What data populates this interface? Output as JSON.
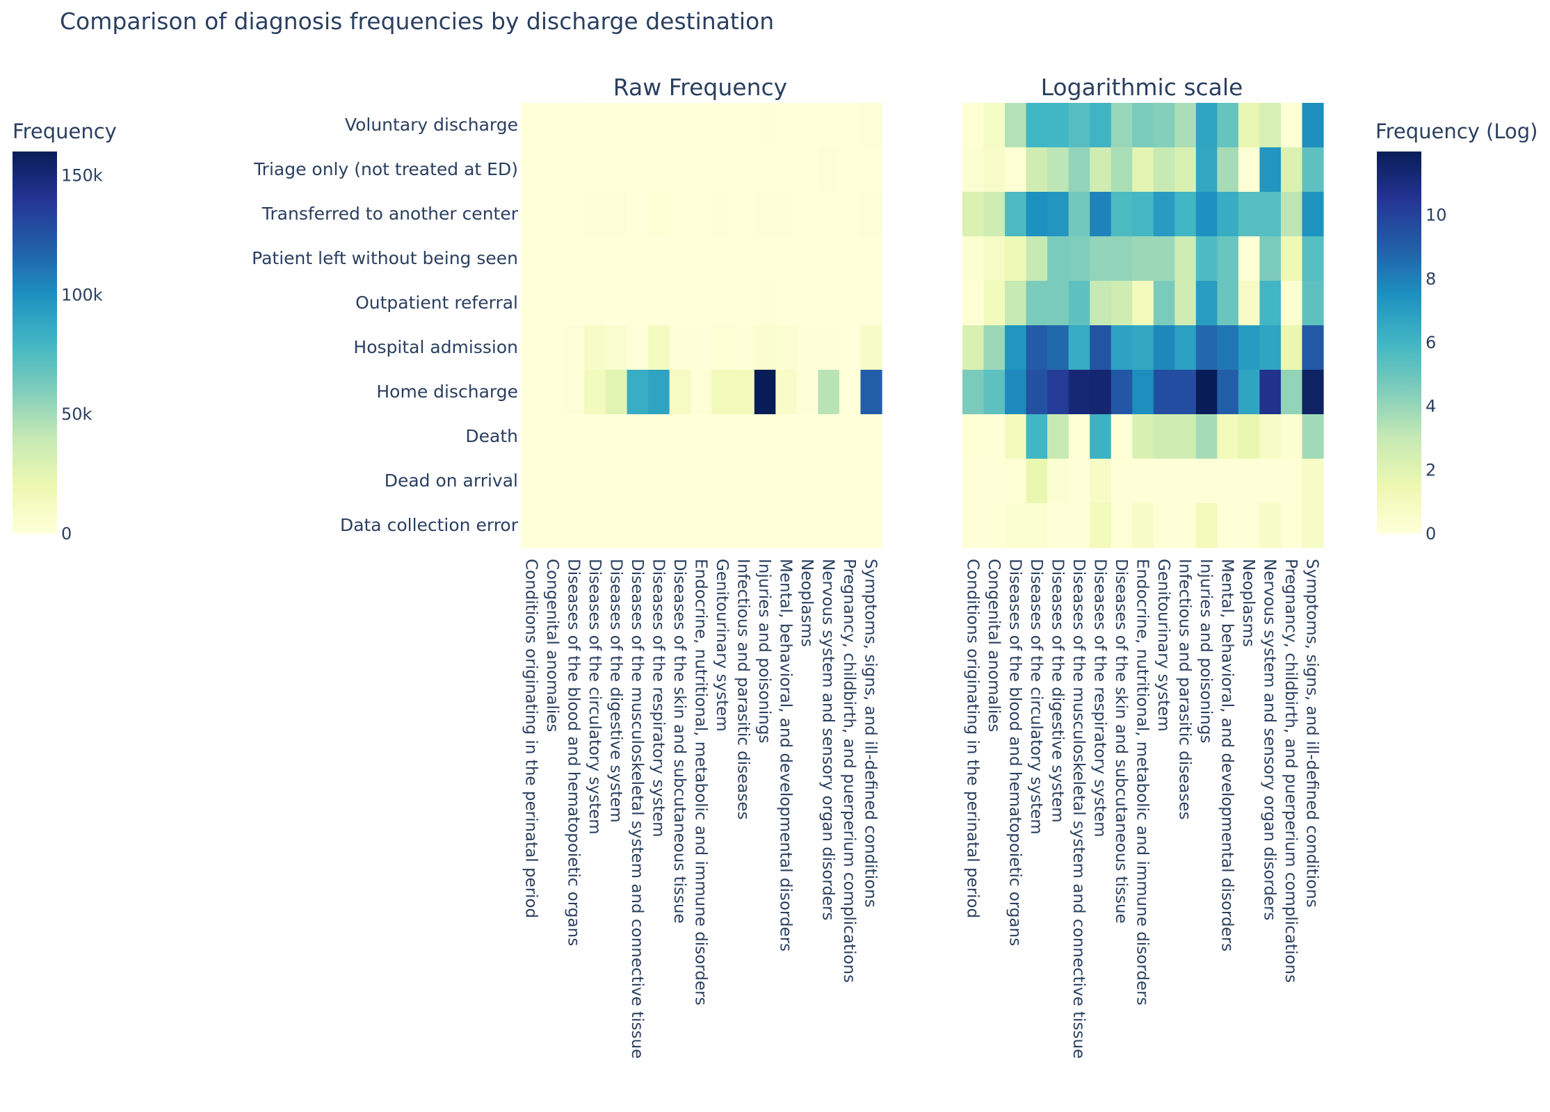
{
  "chart_data": {
    "type": "heatmap",
    "title": "Comparison of diagnosis frequencies by discharge destination",
    "colorscale": "YlGnBu",
    "colorscale_stops": [
      "#ffffd9",
      "#edf8b1",
      "#c7e9b4",
      "#7fcdbb",
      "#41b6c4",
      "#1d91c0",
      "#225ea8",
      "#253494",
      "#081d58"
    ],
    "y_categories": [
      "Voluntary discharge",
      "Triage only (not treated at ED)",
      "Transferred to another center",
      "Patient left without being seen",
      "Outpatient referral",
      "Hospital admission",
      "Home discharge",
      "Death",
      "Dead on arrival",
      "Data collection error"
    ],
    "x_categories": [
      "Conditions originating in the perinatal period",
      "Congenital anomalies",
      "Diseases of the blood and hematopoietic organs",
      "Diseases of the circulatory system",
      "Diseases of the digestive system",
      "Diseases of the musculoskeletal system and connective tissue",
      "Diseases of the respiratory system",
      "Diseases of the skin and subcutaneous tissue",
      "Endocrine, nutritional, metabolic and immune disorders",
      "Genitourinary system",
      "Infectious and parasitic diseases",
      "Injuries and poisonings",
      "Mental, behavioral, and developmental disorders",
      "Neoplasms",
      "Nervous system and sensory organ disorders",
      "Pregnancy, childbirth, and puerperium complications",
      "Symptoms, signs, and ill-defined conditions"
    ],
    "panels": [
      {
        "subtitle": "Raw Frequency",
        "colorbar": {
          "title": "Frequency",
          "range": [
            0,
            160000
          ],
          "tickvals": [
            0,
            50000,
            100000,
            150000
          ],
          "ticktext": [
            "0",
            "50k",
            "100k",
            "150k"
          ]
        },
        "z": [
          [
            1,
            1,
            30,
            400,
            420,
            250,
            450,
            50,
            20,
            80,
            40,
            800,
            160,
            3,
            10,
            1,
            2000
          ],
          [
            1,
            1,
            1,
            15,
            25,
            60,
            15,
            15,
            1,
            10,
            5,
            15,
            15,
            1,
            1500,
            10,
            200
          ],
          [
            10,
            15,
            300,
            1800,
            1500,
            120,
            2600,
            300,
            350,
            1200,
            400,
            1800,
            600,
            250,
            250,
            25,
            1600
          ],
          [
            1,
            2,
            2,
            20,
            100,
            90,
            60,
            60,
            50,
            50,
            15,
            300,
            150,
            1,
            100,
            2,
            250
          ],
          [
            1,
            3,
            20,
            100,
            100,
            200,
            20,
            15,
            3,
            100,
            15,
            1100,
            150,
            2,
            400,
            1,
            200
          ],
          [
            10,
            50,
            1500,
            9000,
            6000,
            600,
            12000,
            900,
            700,
            2500,
            1000,
            6000,
            4000,
            1200,
            800,
            5,
            10000
          ],
          [
            100,
            200,
            2200,
            14000,
            26000,
            85000,
            90000,
            11000,
            2000,
            15000,
            15000,
            160000,
            8000,
            850,
            44000,
            60,
            120000
          ],
          [
            1,
            1,
            3,
            400,
            20,
            1,
            500,
            1,
            10,
            15,
            15,
            40,
            3,
            5,
            2,
            1,
            20
          ],
          [
            1,
            1,
            1,
            5,
            1,
            1,
            2,
            1,
            1,
            1,
            1,
            1,
            1,
            1,
            1,
            1,
            2
          ],
          [
            1,
            1,
            1,
            1,
            1,
            1,
            3,
            1,
            2,
            1,
            1,
            3,
            1,
            1,
            2,
            1,
            2
          ]
        ]
      },
      {
        "subtitle": "Logarithmic scale",
        "colorbar": {
          "title": "Frequency (Log)",
          "range": [
            0,
            12
          ],
          "tickvals": [
            0,
            2,
            4,
            6,
            8,
            10
          ],
          "ticktext": [
            "0",
            "2",
            "4",
            "6",
            "8",
            "10"
          ]
        },
        "z": [
          [
            0.2,
            0.8,
            3.4,
            6.0,
            6.0,
            5.5,
            6.1,
            4.0,
            4.6,
            4.4,
            3.6,
            6.7,
            5.1,
            1.7,
            2.4,
            0.1,
            7.6
          ],
          [
            0.3,
            0.6,
            0.2,
            2.7,
            3.2,
            4.1,
            2.7,
            3.6,
            1.9,
            3.0,
            2.3,
            6.6,
            3.7,
            0.2,
            7.3,
            2.2,
            5.3
          ],
          [
            2.2,
            2.7,
            5.7,
            7.5,
            7.3,
            4.8,
            7.9,
            5.7,
            5.9,
            7.1,
            6.0,
            7.5,
            6.4,
            5.5,
            5.5,
            3.2,
            7.4
          ],
          [
            0.3,
            0.8,
            1.3,
            3.0,
            4.6,
            4.5,
            4.1,
            4.1,
            3.9,
            3.9,
            2.7,
            5.7,
            5.0,
            0.2,
            4.6,
            1.3,
            5.5
          ],
          [
            0.2,
            1.1,
            3.0,
            4.6,
            4.6,
            5.3,
            3.0,
            2.7,
            1.1,
            4.6,
            2.7,
            7.0,
            5.0,
            0.7,
            6.0,
            0.3,
            5.3
          ],
          [
            2.3,
            3.9,
            7.3,
            9.1,
            8.7,
            6.4,
            9.4,
            6.8,
            6.6,
            7.8,
            6.9,
            8.7,
            8.3,
            7.1,
            6.7,
            1.6,
            9.2
          ],
          [
            4.6,
            5.3,
            7.7,
            9.5,
            10.2,
            11.3,
            11.4,
            9.3,
            7.6,
            9.6,
            9.6,
            12.0,
            9.0,
            6.7,
            10.7,
            4.1,
            11.7
          ],
          [
            0.2,
            0.1,
            1.1,
            6.0,
            3.0,
            0.2,
            6.2,
            0.1,
            2.3,
            2.7,
            2.7,
            3.7,
            1.1,
            1.6,
            0.7,
            0.3,
            3.8
          ],
          [
            0.1,
            0.1,
            0.2,
            1.6,
            0.3,
            0.1,
            0.7,
            0.1,
            0.1,
            0.1,
            0.1,
            0.1,
            0.1,
            0.1,
            0.1,
            0.1,
            0.7
          ],
          [
            0.1,
            0.1,
            0.3,
            0.3,
            0.1,
            0.1,
            1.1,
            0.1,
            0.7,
            0.1,
            0.1,
            1.1,
            0.1,
            0.1,
            0.7,
            0.1,
            0.7
          ]
        ]
      }
    ]
  }
}
